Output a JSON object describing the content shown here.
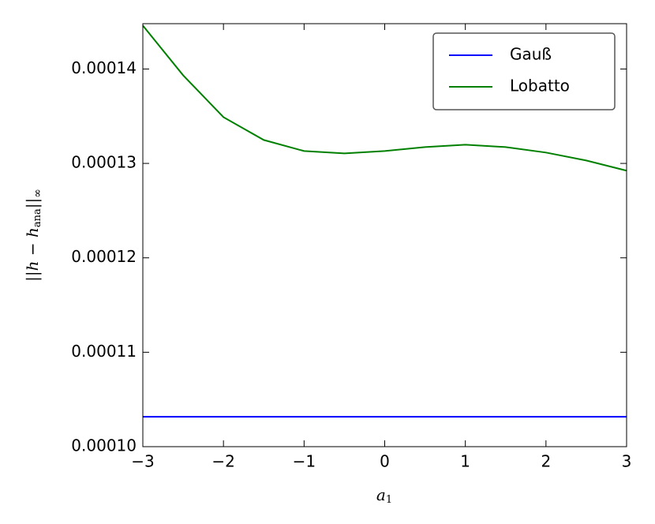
{
  "chart_data": {
    "type": "line",
    "xlabel": [
      "a",
      "1"
    ],
    "ylabel": [
      "||h − h",
      "ana",
      "||",
      "∞"
    ],
    "x": [
      -3,
      -2.5,
      -2,
      -1.5,
      -1,
      -0.5,
      0,
      0.5,
      1,
      1.5,
      2,
      2.5,
      3
    ],
    "series": [
      {
        "name": "Gauß",
        "color": "#0000ff",
        "values": [
          0.00010317,
          0.00010317,
          0.00010317,
          0.00010317,
          0.00010317,
          0.00010317,
          0.00010317,
          0.00010317,
          0.00010317,
          0.00010317,
          0.00010317,
          0.00010317,
          0.00010317
        ]
      },
      {
        "name": "Lobatto",
        "color": "#008000",
        "values": [
          0.0001446,
          0.00013933,
          0.0001349,
          0.00013248,
          0.00013131,
          0.00013106,
          0.00013131,
          0.00013173,
          0.00013198,
          0.00013173,
          0.00013115,
          0.00013031,
          0.00012923
        ]
      }
    ],
    "xlim": [
      -3,
      3
    ],
    "xticks": [
      {
        "value": -3,
        "label": "−3"
      },
      {
        "value": -2,
        "label": "−2"
      },
      {
        "value": -1,
        "label": "−1"
      },
      0,
      1,
      2,
      3
    ],
    "ylim": [
      0.0001,
      0.0001448
    ],
    "yticks": [
      {
        "value": 0.0001,
        "label": "0.00010"
      },
      {
        "value": 0.00011,
        "label": "0.00011"
      },
      {
        "value": 0.00012,
        "label": "0.00012"
      },
      {
        "value": 0.00013,
        "label": "0.00013"
      },
      {
        "value": 0.00014,
        "label": "0.00014"
      }
    ],
    "legend": "upper right",
    "grid": false
  }
}
